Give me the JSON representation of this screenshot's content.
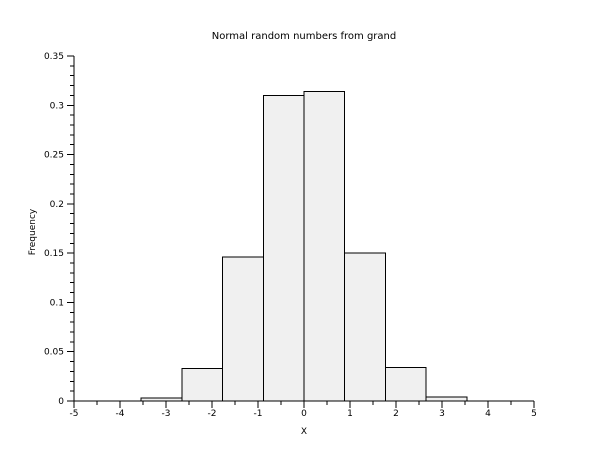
{
  "chart_data": {
    "type": "bar",
    "subtype": "histogram",
    "title": "Normal random numbers from grand",
    "xlabel": "X",
    "ylabel": "Frequency",
    "xlim": [
      -5,
      5
    ],
    "ylim": [
      0,
      0.35
    ],
    "x_major_ticks": [
      -5,
      -4,
      -3,
      -2,
      -1,
      0,
      1,
      2,
      3,
      4,
      5
    ],
    "x_tick_labels": [
      "-5",
      "-4",
      "-3",
      "-2",
      "-1",
      "0",
      "1",
      "2",
      "3",
      "4",
      "5"
    ],
    "x_minor_step": 0.5,
    "y_major_ticks": [
      0,
      0.05,
      0.1,
      0.15,
      0.2,
      0.25,
      0.3,
      0.35
    ],
    "y_tick_labels": [
      "0",
      "0.05",
      "0.1",
      "0.15",
      "0.2",
      "0.25",
      "0.3",
      "0.35"
    ],
    "y_minor_step": 0.01,
    "bin_edges": [
      -3.54,
      -2.65,
      -1.77,
      -0.88,
      0.0,
      0.88,
      1.77,
      2.65,
      3.54
    ],
    "values": [
      0.003,
      0.033,
      0.146,
      0.31,
      0.314,
      0.15,
      0.034,
      0.004
    ],
    "grid": false,
    "legend": null,
    "colors": {
      "background": "#ffffff",
      "bar_fill": "#f0f0f0",
      "bar_stroke": "#000000",
      "axis": "#000000",
      "text": "#000000"
    }
  }
}
